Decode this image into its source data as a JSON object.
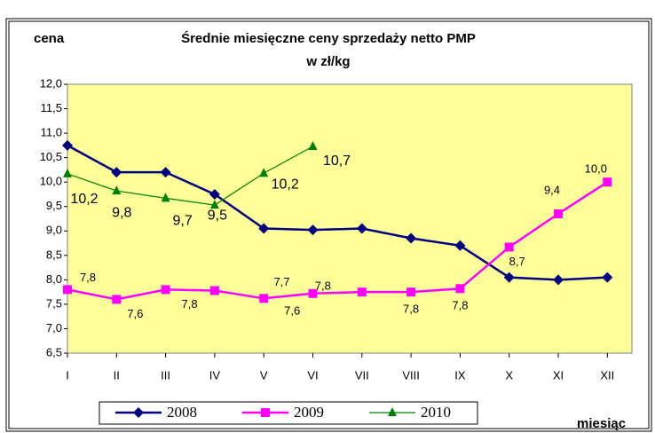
{
  "chart_data": {
    "type": "line",
    "title": "Średnie miesięczne ceny sprzedaży netto PMP",
    "subtitle": "w zł/kg",
    "y_label": "cena",
    "x_label": "miesiąc",
    "categories": [
      "I",
      "II",
      "III",
      "IV",
      "V",
      "VI",
      "VII",
      "VIII",
      "IX",
      "X",
      "XI",
      "XII"
    ],
    "ylim": [
      6.5,
      12
    ],
    "yticks": [
      {
        "value": 6.5,
        "label": "6,5"
      },
      {
        "value": 7,
        "label": "7,0"
      },
      {
        "value": 7.5,
        "label": "7,5"
      },
      {
        "value": 8,
        "label": "8,0"
      },
      {
        "value": 8.5,
        "label": "8,5"
      },
      {
        "value": 9,
        "label": "9,0"
      },
      {
        "value": 9.5,
        "label": "9,5"
      },
      {
        "value": 10,
        "label": "10,0"
      },
      {
        "value": 10.5,
        "label": "10,5"
      },
      {
        "value": 11,
        "label": "11,0"
      },
      {
        "value": 11.5,
        "label": "11,5"
      },
      {
        "value": 12,
        "label": "12,0"
      }
    ],
    "grid": false,
    "legend": "bottom",
    "series": [
      {
        "name": "2008",
        "color": "#000080",
        "marker": "diamond",
        "values": [
          10.75,
          10.2,
          10.2,
          9.75,
          9.05,
          9.02,
          9.05,
          8.85,
          8.7,
          8.05,
          8.0,
          8.05
        ]
      },
      {
        "name": "2009",
        "color": "#FF00FF",
        "marker": "square",
        "values": [
          7.8,
          7.6,
          7.8,
          7.78,
          7.62,
          7.72,
          7.75,
          7.75,
          7.82,
          8.67,
          9.35,
          10.0
        ],
        "value_labels": [
          "7,8",
          "7,6",
          "7,8",
          null,
          "7,6",
          "7,7",
          "7,8",
          "7,8",
          "7,8",
          "8,7",
          "9,4",
          "10,0"
        ]
      },
      {
        "name": "2010",
        "color": "#008000",
        "marker": "triangle",
        "values": [
          10.17,
          9.82,
          9.67,
          9.53,
          10.18,
          10.73,
          null,
          null,
          null,
          null,
          null,
          null
        ],
        "value_labels": [
          "10,2",
          "9,8",
          "9,7",
          "9,5",
          "10,2",
          "10,7",
          null,
          null,
          null,
          null,
          null,
          null
        ]
      }
    ]
  }
}
